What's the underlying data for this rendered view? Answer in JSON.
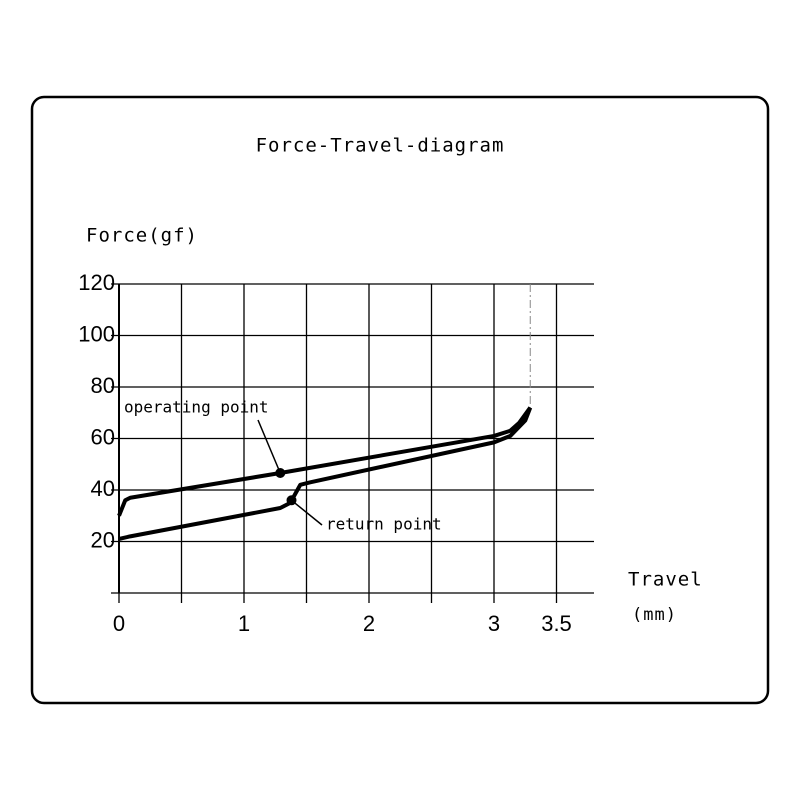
{
  "chart_data": {
    "type": "line",
    "title": "Force-Travel-diagram",
    "ylabel": "Force(gf)",
    "xlabel": "Travel",
    "xunit": "(mm)",
    "xlim": [
      0,
      3.8
    ],
    "ylim": [
      0,
      120
    ],
    "xticks": [
      0,
      {
        "value": 0.5,
        "label": null
      },
      1,
      {
        "value": 1.5,
        "label": null
      },
      2,
      {
        "value": 2.5,
        "label": null
      },
      3,
      3.5
    ],
    "yticks": [
      {
        "value": 0,
        "label": null
      },
      20,
      40,
      60,
      80,
      100,
      120
    ],
    "grid": true,
    "limit_x": 3.29,
    "series": [
      {
        "color": "#000000",
        "x": [
          0,
          0.05,
          0.09,
          1.29,
          3,
          3.13,
          3.2,
          3.29
        ],
        "values": [
          30,
          36,
          37,
          46.6,
          61,
          63,
          66,
          72
        ]
      },
      {
        "color": "#000000",
        "x": [
          0,
          0.09,
          1.29,
          1.37,
          1.45,
          1.53,
          3,
          3.13,
          3.25,
          3.29
        ],
        "values": [
          21,
          22,
          33,
          35,
          42,
          43,
          58.5,
          61,
          67,
          72
        ]
      }
    ],
    "annotations": [
      {
        "text": "operating point",
        "x": 1.29,
        "y": 46.6
      },
      {
        "text": "return point",
        "x": 1.38,
        "y": 36
      }
    ]
  }
}
